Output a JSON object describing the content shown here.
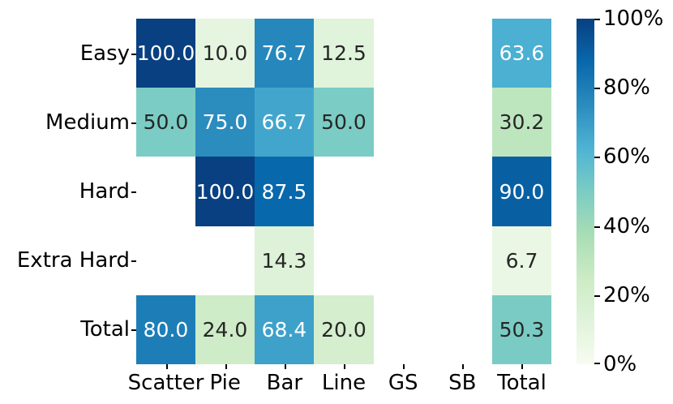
{
  "chart_data": {
    "type": "heatmap",
    "title": "",
    "xlabel": "",
    "ylabel": "",
    "rows": [
      "Easy",
      "Medium",
      "Hard",
      "Extra Hard",
      "Total"
    ],
    "columns": [
      "Scatter",
      "Pie",
      "Bar",
      "Line",
      "GS",
      "SB",
      "Total"
    ],
    "values": [
      [
        100.0,
        10.0,
        76.7,
        12.5,
        null,
        null,
        63.6
      ],
      [
        50.0,
        75.0,
        66.7,
        50.0,
        null,
        null,
        30.2
      ],
      [
        null,
        100.0,
        87.5,
        null,
        null,
        null,
        90.0
      ],
      [
        null,
        null,
        14.3,
        null,
        null,
        null,
        6.7
      ],
      [
        80.0,
        24.0,
        68.4,
        20.0,
        null,
        null,
        50.3
      ]
    ],
    "value_decimals": 1,
    "vmin": 0,
    "vmax": 100,
    "grid": false,
    "legend_position": "colorbar-right",
    "colorbar_ticks": [
      {
        "value": 0,
        "label": "0%"
      },
      {
        "value": 20,
        "label": "20%"
      },
      {
        "value": 40,
        "label": "40%"
      },
      {
        "value": 60,
        "label": "60%"
      },
      {
        "value": 80,
        "label": "80%"
      },
      {
        "value": 100,
        "label": "100%"
      }
    ],
    "colormap_name": "GnBu",
    "colormap_stops": [
      "#f7fcf0",
      "#e0f3db",
      "#ccebc5",
      "#a8ddb5",
      "#7bccc4",
      "#4eb3d3",
      "#2b8cbe",
      "#0868ac",
      "#084081"
    ],
    "annotation_text_light": "#ffffff",
    "annotation_text_dark": "#262626",
    "background_color": "#ffffff"
  }
}
